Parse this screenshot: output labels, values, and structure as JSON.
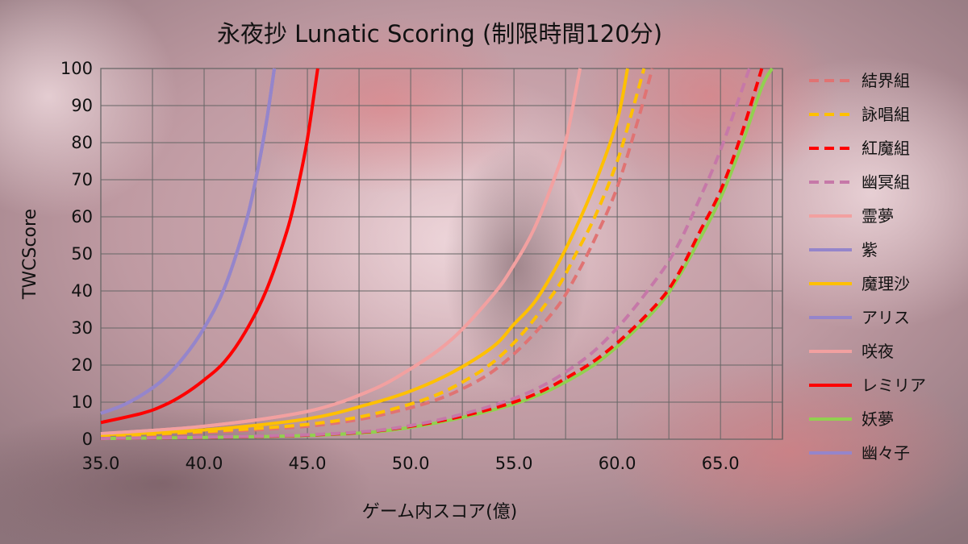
{
  "chart_data": {
    "type": "line",
    "title": "永夜抄 Lunatic Scoring (制限時間120分)",
    "xlabel": "ゲーム内スコア(億)",
    "ylabel": "TWCScore",
    "xlim": [
      35.0,
      68.0
    ],
    "ylim": [
      0,
      100
    ],
    "x_ticks": [
      "35.0",
      "40.0",
      "45.0",
      "50.0",
      "55.0",
      "60.0",
      "65.0"
    ],
    "y_ticks": [
      "0",
      "10",
      "20",
      "30",
      "40",
      "50",
      "60",
      "70",
      "80",
      "90",
      "100"
    ],
    "grid": true,
    "legend_position": "right",
    "series": [
      {
        "name": "結界組",
        "color": "#e07373",
        "dash": true,
        "x": [
          35,
          45,
          50,
          53,
          55,
          57,
          58,
          59,
          60,
          61,
          61.7
        ],
        "y": [
          0.6,
          3.5,
          8.5,
          15,
          23,
          35,
          44,
          55,
          68,
          86,
          100
        ]
      },
      {
        "name": "詠唱組",
        "color": "#ffc000",
        "dash": true,
        "x": [
          35,
          45,
          50,
          53,
          55,
          57,
          58,
          59,
          60,
          60.7,
          61.3
        ],
        "y": [
          0.7,
          4,
          9.5,
          17,
          26,
          40,
          50,
          61,
          75,
          88,
          100
        ]
      },
      {
        "name": "紅魔組",
        "color": "#ff0000",
        "dash": true,
        "x": [
          35,
          45,
          50,
          55,
          58,
          60,
          62,
          63,
          64,
          65,
          66,
          67
        ],
        "y": [
          0.2,
          1.1,
          3.5,
          10,
          18,
          26,
          37,
          45,
          56,
          67,
          82,
          100
        ]
      },
      {
        "name": "幽冥組",
        "color": "#c678a8",
        "dash": true,
        "x": [
          35,
          45,
          50,
          55,
          58,
          60,
          62,
          63,
          64,
          65,
          66.4
        ],
        "y": [
          0.2,
          1.2,
          3.7,
          11,
          20,
          30,
          44,
          53,
          65,
          78,
          100
        ]
      },
      {
        "name": "霊夢",
        "color": "#f2a0a0",
        "dash": false,
        "x": [
          35,
          40,
          45,
          48,
          50,
          52,
          54,
          55,
          56,
          57,
          57.5,
          58.2
        ],
        "y": [
          1.5,
          3.5,
          7.5,
          13,
          19,
          27,
          39,
          47,
          57,
          71,
          80,
          100
        ]
      },
      {
        "name": "紫",
        "color": "#9585cb",
        "dash": false,
        "x": [
          35,
          36,
          37,
          38,
          39,
          40,
          41,
          42,
          42.5,
          43,
          43.4
        ],
        "y": [
          7,
          9,
          12,
          16,
          22,
          30,
          41,
          58,
          70,
          85,
          100
        ]
      },
      {
        "name": "魔理沙",
        "color": "#ffc000",
        "dash": false,
        "x": [
          35,
          40,
          45,
          48,
          50,
          52,
          54,
          55,
          56,
          57,
          58,
          59,
          60,
          60.5
        ],
        "y": [
          1.2,
          2.5,
          5.5,
          9.5,
          13,
          18,
          25,
          31,
          37,
          46,
          57,
          70,
          86,
          100
        ]
      },
      {
        "name": "アリス",
        "color": "#9585cb",
        "dash": false,
        "x": [
          35,
          36,
          37,
          38,
          39,
          40,
          41,
          42,
          42.5,
          43,
          43.4
        ],
        "y": [
          7,
          9,
          12,
          16,
          22,
          30,
          41,
          58,
          70,
          85,
          100
        ]
      },
      {
        "name": "咲夜",
        "color": "#f2a0a0",
        "dash": false,
        "x": [
          35,
          40,
          45,
          48,
          50,
          52,
          54,
          55,
          56,
          57,
          57.5,
          58.2
        ],
        "y": [
          1.5,
          3.5,
          7.5,
          13,
          19,
          27,
          39,
          47,
          57,
          71,
          80,
          100
        ]
      },
      {
        "name": "レミリア",
        "color": "#ff0000",
        "dash": false,
        "x": [
          35,
          37,
          38,
          39,
          40,
          41,
          42,
          43,
          44,
          44.5,
          45,
          45.5
        ],
        "y": [
          4.5,
          7,
          9,
          12,
          16,
          21,
          29,
          40,
          56,
          67,
          81,
          100
        ]
      },
      {
        "name": "妖夢",
        "color": "#92d050",
        "dash": false,
        "x": [
          35,
          45,
          50,
          55,
          58,
          60,
          62,
          63,
          64,
          65,
          66,
          67,
          67.5
        ],
        "y": [
          0.2,
          1,
          3.2,
          9.5,
          17,
          25,
          36,
          44,
          54,
          65,
          79,
          95,
          100
        ]
      },
      {
        "name": "幽々子",
        "color": "#9585cb",
        "dash": false,
        "x": [
          35,
          36,
          37,
          38,
          39,
          40,
          41,
          42,
          42.5,
          43,
          43.4
        ],
        "y": [
          7,
          9,
          12,
          16,
          22,
          30,
          41,
          58,
          70,
          85,
          100
        ]
      }
    ]
  }
}
